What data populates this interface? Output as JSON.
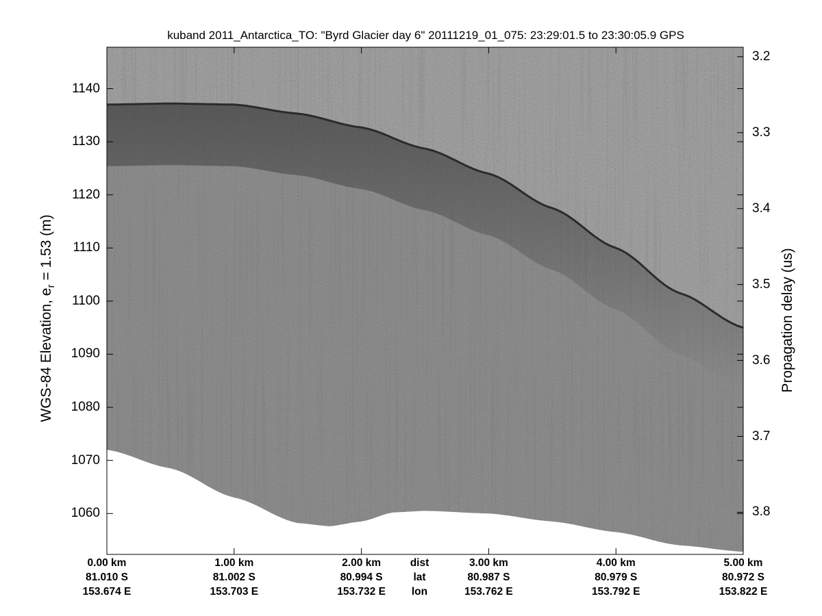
{
  "chart_data": {
    "type": "heatmap",
    "title": "kuband 2011_Antarctica_TO: \"Byrd Glacier day 6\"  20111219_01_075: 23:29:01.5 to 23:30:05.9 GPS",
    "ylabel": "WGS-84 Elevation, e",
    "ylabel_sub": "r",
    "ylabel_suffix": " = 1.53 (m)",
    "ylabel_right": "Propagation delay (us)",
    "colormap": "grayscale",
    "ylim": [
      1052.3,
      1147.8
    ],
    "yticks_left": [
      "1060",
      "1070",
      "1080",
      "1090",
      "1100",
      "1110",
      "1120",
      "1130",
      "1140"
    ],
    "yticks_right": [
      "3.2",
      "3.3",
      "3.4",
      "3.5",
      "3.6",
      "3.7",
      "3.8"
    ],
    "yticks_right_values_us": [
      3.2,
      3.3,
      3.4,
      3.5,
      3.6,
      3.7,
      3.8
    ],
    "delay_axis": {
      "at_elevation": [
        1147.8,
        1052.3
      ],
      "delay_us": [
        3.1875,
        3.8555
      ]
    },
    "xlim_km": [
      0,
      5
    ],
    "x_ticks": [
      {
        "km": 0,
        "dist": "0.00 km",
        "lat": "81.010 S",
        "lon": "153.674 E"
      },
      {
        "km": 1,
        "dist": "1.00 km",
        "lat": "81.002 S",
        "lon": "153.703 E"
      },
      {
        "km": 2,
        "dist": "2.00 km",
        "lat": "80.994 S",
        "lon": "153.732 E"
      },
      {
        "km": 3,
        "dist": "3.00 km",
        "lat": "80.987 S",
        "lon": "153.762 E"
      },
      {
        "km": 4,
        "dist": "4.00 km",
        "lat": "80.979 S",
        "lon": "153.792 E"
      },
      {
        "km": 5,
        "dist": "5.00 km",
        "lat": "80.972 S",
        "lon": "153.822 E"
      }
    ],
    "x_row_labels": {
      "km": 2.5,
      "dist": "dist",
      "lat": "lat",
      "lon": "lon"
    },
    "surface_elevation": {
      "km": [
        0,
        0.5,
        1.0,
        1.5,
        2.0,
        2.5,
        3.0,
        3.5,
        4.0,
        4.5,
        5.0
      ],
      "m": [
        1137.0,
        1137.2,
        1137.0,
        1135.3,
        1132.7,
        1128.7,
        1124.0,
        1117.5,
        1110.0,
        1101.5,
        1095.0
      ]
    },
    "data_bottom_elevation": {
      "km": [
        0,
        0.5,
        1.0,
        1.5,
        1.75,
        2.0,
        2.25,
        2.5,
        3.0,
        3.5,
        4.0,
        4.5,
        5.0
      ],
      "m": [
        1072.0,
        1068.5,
        1063.0,
        1058.2,
        1057.6,
        1058.5,
        1060.2,
        1060.5,
        1060.0,
        1058.5,
        1056.5,
        1054.0,
        1052.8
      ]
    },
    "grid": false,
    "legend": "none"
  }
}
